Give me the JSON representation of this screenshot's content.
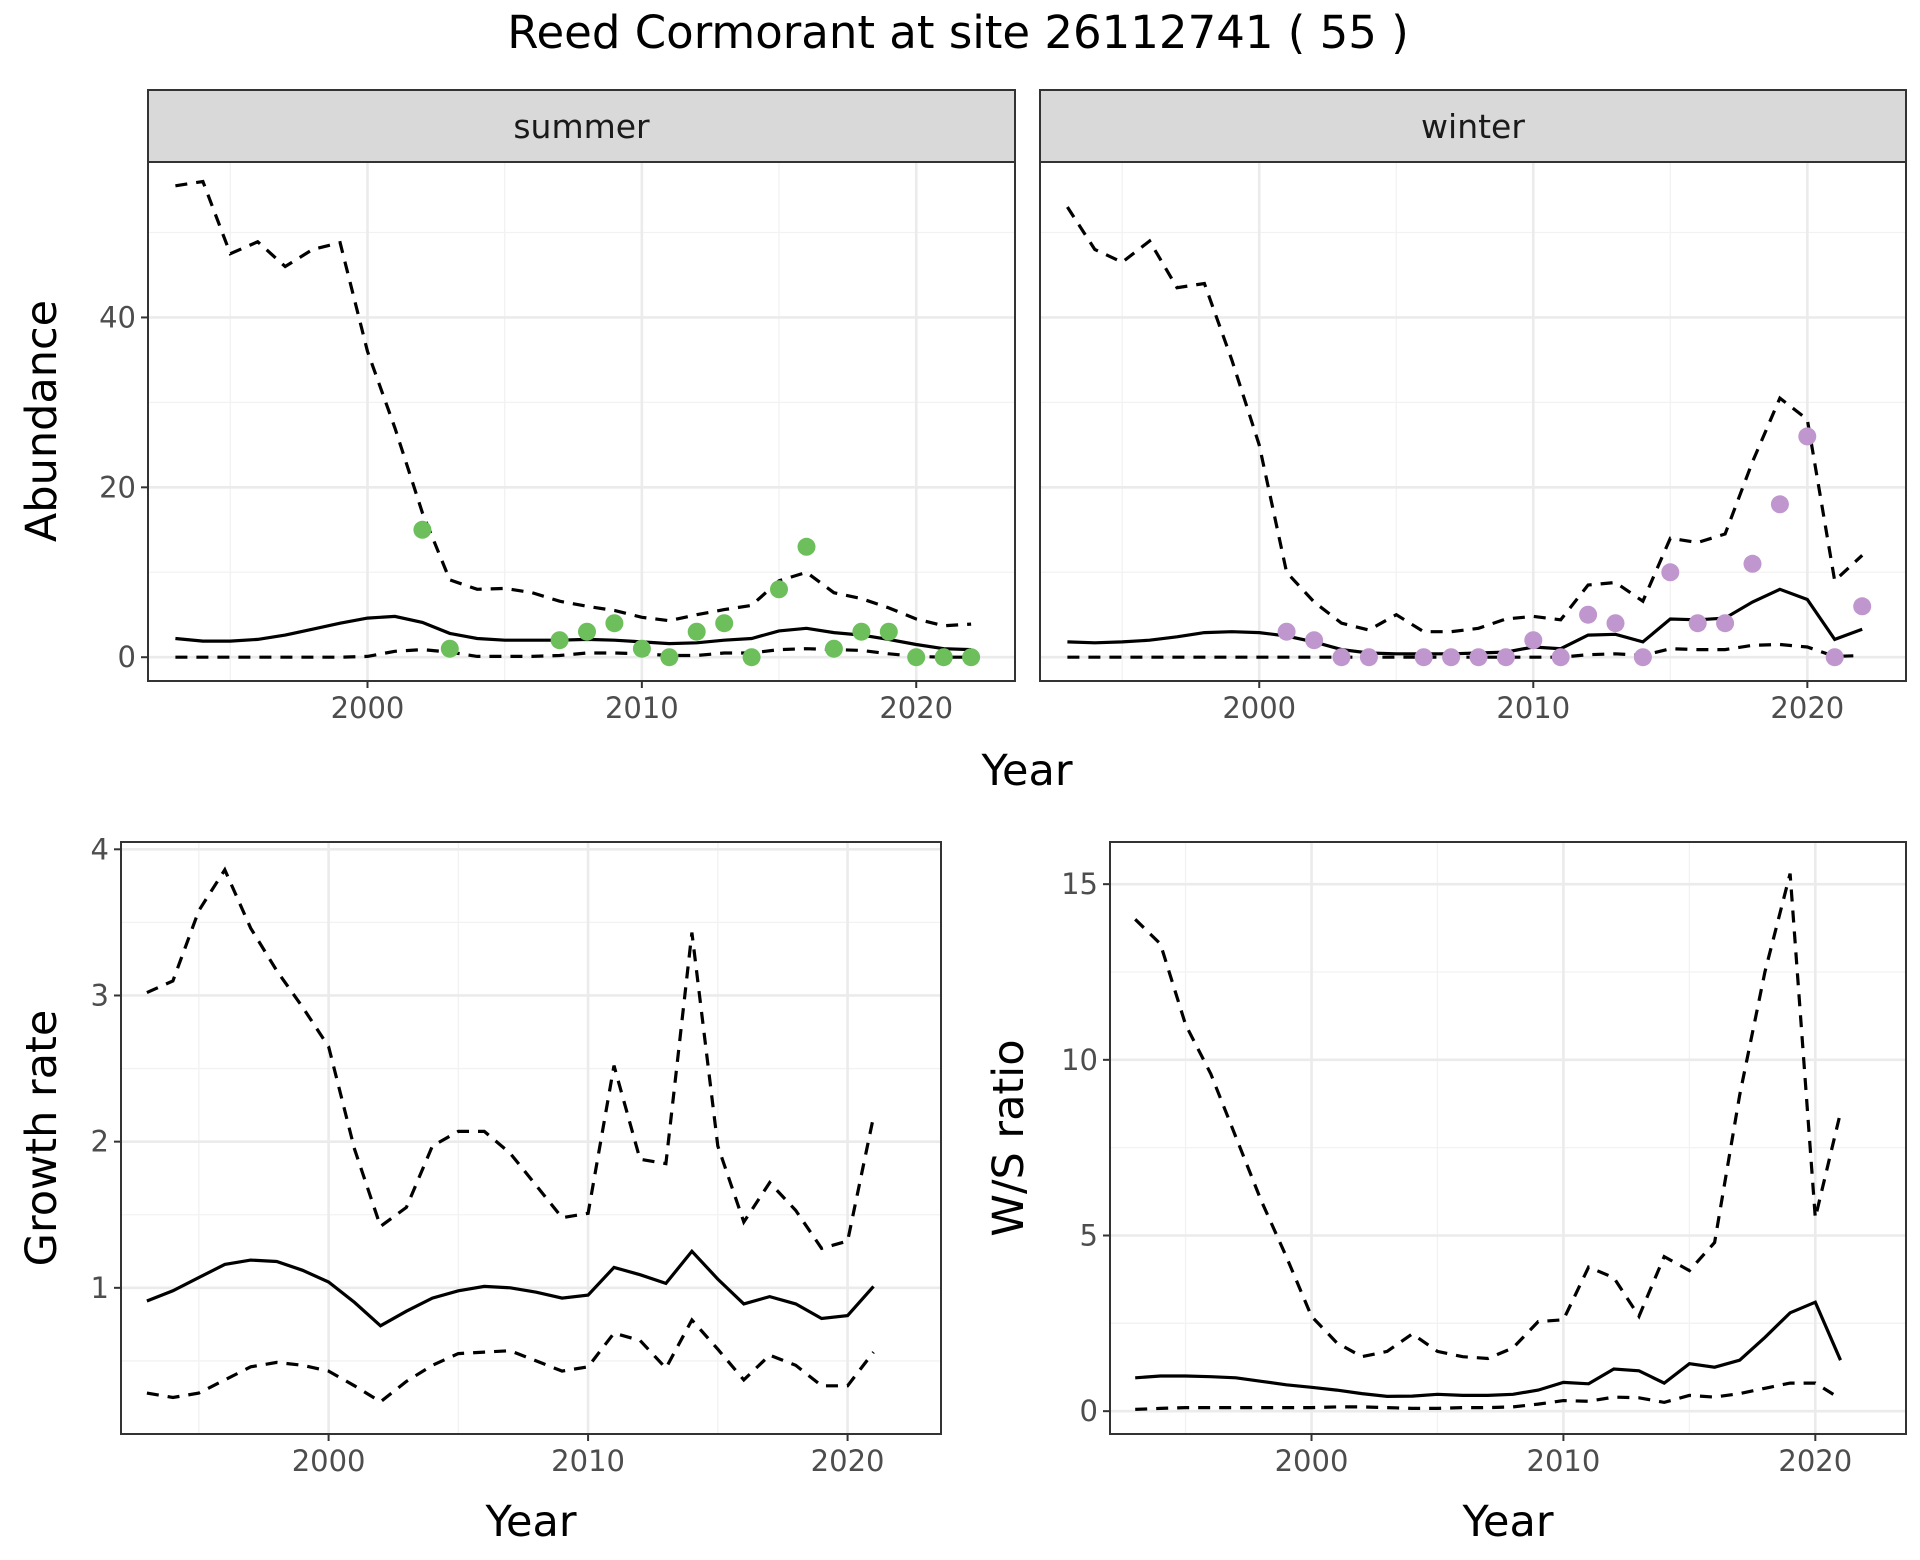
{
  "title": "Reed Cormorant at site 26112741 ( 55 )",
  "colors": {
    "summer": "#6cbf5a",
    "winter": "#bf96cd",
    "line": "#000000"
  },
  "chart_data": [
    {
      "type": "line",
      "facets": [
        "summer",
        "winter"
      ],
      "xlabel": "Year",
      "ylabel": "Abundance",
      "xlim": [
        1992,
        2023.6
      ],
      "ylim": [
        -2.8,
        58.3
      ],
      "xticks": [
        2000,
        2010,
        2020
      ],
      "yticks": [
        0,
        20,
        40
      ],
      "panels": [
        {
          "name": "summer",
          "x": [
            1993,
            1994,
            1995,
            1996,
            1997,
            1998,
            1999,
            2000,
            2001,
            2002,
            2003,
            2004,
            2005,
            2006,
            2007,
            2008,
            2009,
            2010,
            2011,
            2012,
            2013,
            2014,
            2015,
            2016,
            2017,
            2018,
            2019,
            2020,
            2021,
            2022
          ],
          "mean": [
            2.2,
            1.9,
            1.9,
            2.1,
            2.6,
            3.3,
            4.0,
            4.6,
            4.8,
            4.1,
            2.8,
            2.2,
            2.0,
            2.0,
            2.0,
            2.1,
            2.0,
            1.8,
            1.6,
            1.7,
            2.0,
            2.2,
            3.1,
            3.4,
            2.9,
            2.6,
            2.1,
            1.5,
            1.0,
            0.9
          ],
          "lower": [
            0,
            0,
            0,
            0,
            0,
            0,
            0,
            0.1,
            0.7,
            0.9,
            0.6,
            0.1,
            0.1,
            0.1,
            0.2,
            0.5,
            0.5,
            0.4,
            0.2,
            0.2,
            0.5,
            0.5,
            0.9,
            1.0,
            0.9,
            0.8,
            0.4,
            0.1,
            0,
            0
          ],
          "upper": [
            55.5,
            56.0,
            47.5,
            48.9,
            46.0,
            48.0,
            48.8,
            36.0,
            27.0,
            17.0,
            9.1,
            8.0,
            8.1,
            7.6,
            6.6,
            6.0,
            5.5,
            4.7,
            4.3,
            5.0,
            5.6,
            6.1,
            9.0,
            10.0,
            7.6,
            6.9,
            5.8,
            4.5,
            3.7,
            3.9
          ],
          "obs_x": [
            2002,
            2003,
            2007,
            2008,
            2009,
            2010,
            2011,
            2012,
            2013,
            2014,
            2015,
            2016,
            2017,
            2018,
            2019,
            2020,
            2021,
            2022
          ],
          "obs_y": [
            15,
            1,
            2,
            3,
            4,
            1,
            0,
            3,
            4,
            0,
            8,
            13,
            1,
            3,
            3,
            0,
            0,
            0
          ]
        },
        {
          "name": "winter",
          "x": [
            1993,
            1994,
            1995,
            1996,
            1997,
            1998,
            1999,
            2000,
            2001,
            2002,
            2003,
            2004,
            2005,
            2006,
            2007,
            2008,
            2009,
            2010,
            2011,
            2012,
            2013,
            2014,
            2015,
            2016,
            2017,
            2018,
            2019,
            2020,
            2021,
            2022
          ],
          "mean": [
            1.8,
            1.7,
            1.8,
            2.0,
            2.4,
            2.9,
            3.0,
            2.9,
            2.5,
            1.8,
            0.9,
            0.5,
            0.4,
            0.4,
            0.4,
            0.5,
            0.6,
            1.2,
            1.0,
            2.6,
            2.7,
            1.8,
            4.5,
            4.4,
            4.6,
            6.5,
            8.0,
            6.8,
            2.1,
            3.3
          ],
          "lower": [
            0,
            0,
            0,
            0,
            0,
            0,
            0,
            0,
            0,
            0,
            0,
            0,
            0,
            0,
            0,
            0,
            0,
            0,
            0,
            0.3,
            0.4,
            0.2,
            1.0,
            0.9,
            0.9,
            1.4,
            1.5,
            1.2,
            0.1,
            0.2
          ],
          "upper": [
            53.0,
            48.0,
            46.5,
            49.0,
            43.5,
            44.0,
            35.0,
            25.0,
            10.0,
            6.5,
            4.0,
            3.2,
            5.0,
            3.0,
            3.0,
            3.4,
            4.5,
            4.8,
            4.4,
            8.5,
            8.8,
            6.6,
            14.0,
            13.5,
            14.5,
            23.0,
            30.5,
            28.0,
            9.0,
            12.0
          ],
          "obs_x": [
            2001,
            2002,
            2003,
            2004,
            2006,
            2007,
            2008,
            2009,
            2010,
            2011,
            2012,
            2013,
            2014,
            2015,
            2016,
            2017,
            2018,
            2019,
            2020,
            2021,
            2022
          ],
          "obs_y": [
            3,
            2,
            0,
            0,
            0,
            0,
            0,
            0,
            2,
            0,
            5,
            4,
            0,
            10,
            4,
            4,
            11,
            18,
            26,
            0,
            6
          ]
        }
      ]
    },
    {
      "type": "line",
      "xlabel": "Year",
      "ylabel": "Growth rate",
      "xlim": [
        1992,
        2023.6
      ],
      "ylim": [
        0,
        4.05
      ],
      "xticks": [
        2000,
        2010,
        2020
      ],
      "yticks": [
        1,
        2,
        3,
        4
      ],
      "x": [
        1993,
        1994,
        1995,
        1996,
        1997,
        1998,
        1999,
        2000,
        2001,
        2002,
        2003,
        2004,
        2005,
        2006,
        2007,
        2008,
        2009,
        2010,
        2011,
        2012,
        2013,
        2014,
        2015,
        2016,
        2017,
        2018,
        2019,
        2020,
        2021
      ],
      "mean": [
        0.91,
        0.98,
        1.07,
        1.16,
        1.19,
        1.18,
        1.12,
        1.04,
        0.9,
        0.74,
        0.84,
        0.93,
        0.98,
        1.01,
        1.0,
        0.97,
        0.93,
        0.95,
        1.14,
        1.09,
        1.03,
        1.25,
        1.06,
        0.89,
        0.94,
        0.89,
        0.79,
        0.81,
        1.01
      ],
      "lower": [
        0.28,
        0.25,
        0.28,
        0.37,
        0.46,
        0.49,
        0.47,
        0.43,
        0.33,
        0.22,
        0.36,
        0.47,
        0.55,
        0.56,
        0.57,
        0.5,
        0.43,
        0.46,
        0.69,
        0.64,
        0.45,
        0.78,
        0.58,
        0.37,
        0.54,
        0.47,
        0.33,
        0.33,
        0.56
      ],
      "upper": [
        3.02,
        3.1,
        3.58,
        3.86,
        3.46,
        3.17,
        2.92,
        2.65,
        1.95,
        1.42,
        1.55,
        1.97,
        2.07,
        2.07,
        1.92,
        1.7,
        1.48,
        1.51,
        2.52,
        1.88,
        1.85,
        3.43,
        1.97,
        1.45,
        1.72,
        1.53,
        1.27,
        1.32,
        2.17
      ]
    },
    {
      "type": "line",
      "xlabel": "Year",
      "ylabel": "W/S ratio",
      "xlim": [
        1992,
        2023.6
      ],
      "ylim": [
        -0.65,
        16.2
      ],
      "xticks": [
        2000,
        2010,
        2020
      ],
      "yticks": [
        0,
        5,
        10,
        15
      ],
      "x": [
        1993,
        1994,
        1995,
        1996,
        1997,
        1998,
        1999,
        2000,
        2001,
        2002,
        2003,
        2004,
        2005,
        2006,
        2007,
        2008,
        2009,
        2010,
        2011,
        2012,
        2013,
        2014,
        2015,
        2016,
        2017,
        2018,
        2019,
        2020,
        2021
      ],
      "mean": [
        0.95,
        1.0,
        1.0,
        0.98,
        0.95,
        0.85,
        0.75,
        0.68,
        0.6,
        0.5,
        0.42,
        0.43,
        0.48,
        0.45,
        0.45,
        0.48,
        0.6,
        0.82,
        0.78,
        1.2,
        1.15,
        0.8,
        1.35,
        1.25,
        1.45,
        2.1,
        2.8,
        3.1,
        1.45
      ],
      "lower": [
        0.05,
        0.08,
        0.1,
        0.1,
        0.1,
        0.1,
        0.1,
        0.1,
        0.12,
        0.12,
        0.1,
        0.08,
        0.08,
        0.1,
        0.1,
        0.12,
        0.2,
        0.3,
        0.28,
        0.4,
        0.38,
        0.25,
        0.45,
        0.4,
        0.5,
        0.65,
        0.8,
        0.8,
        0.35
      ],
      "upper": [
        14.0,
        13.3,
        11.0,
        9.6,
        7.8,
        6.0,
        4.4,
        2.7,
        1.95,
        1.55,
        1.7,
        2.2,
        1.7,
        1.55,
        1.5,
        1.8,
        2.55,
        2.6,
        4.1,
        3.8,
        2.7,
        4.4,
        4.0,
        4.8,
        9.0,
        12.5,
        15.3,
        5.5,
        8.5
      ]
    }
  ]
}
